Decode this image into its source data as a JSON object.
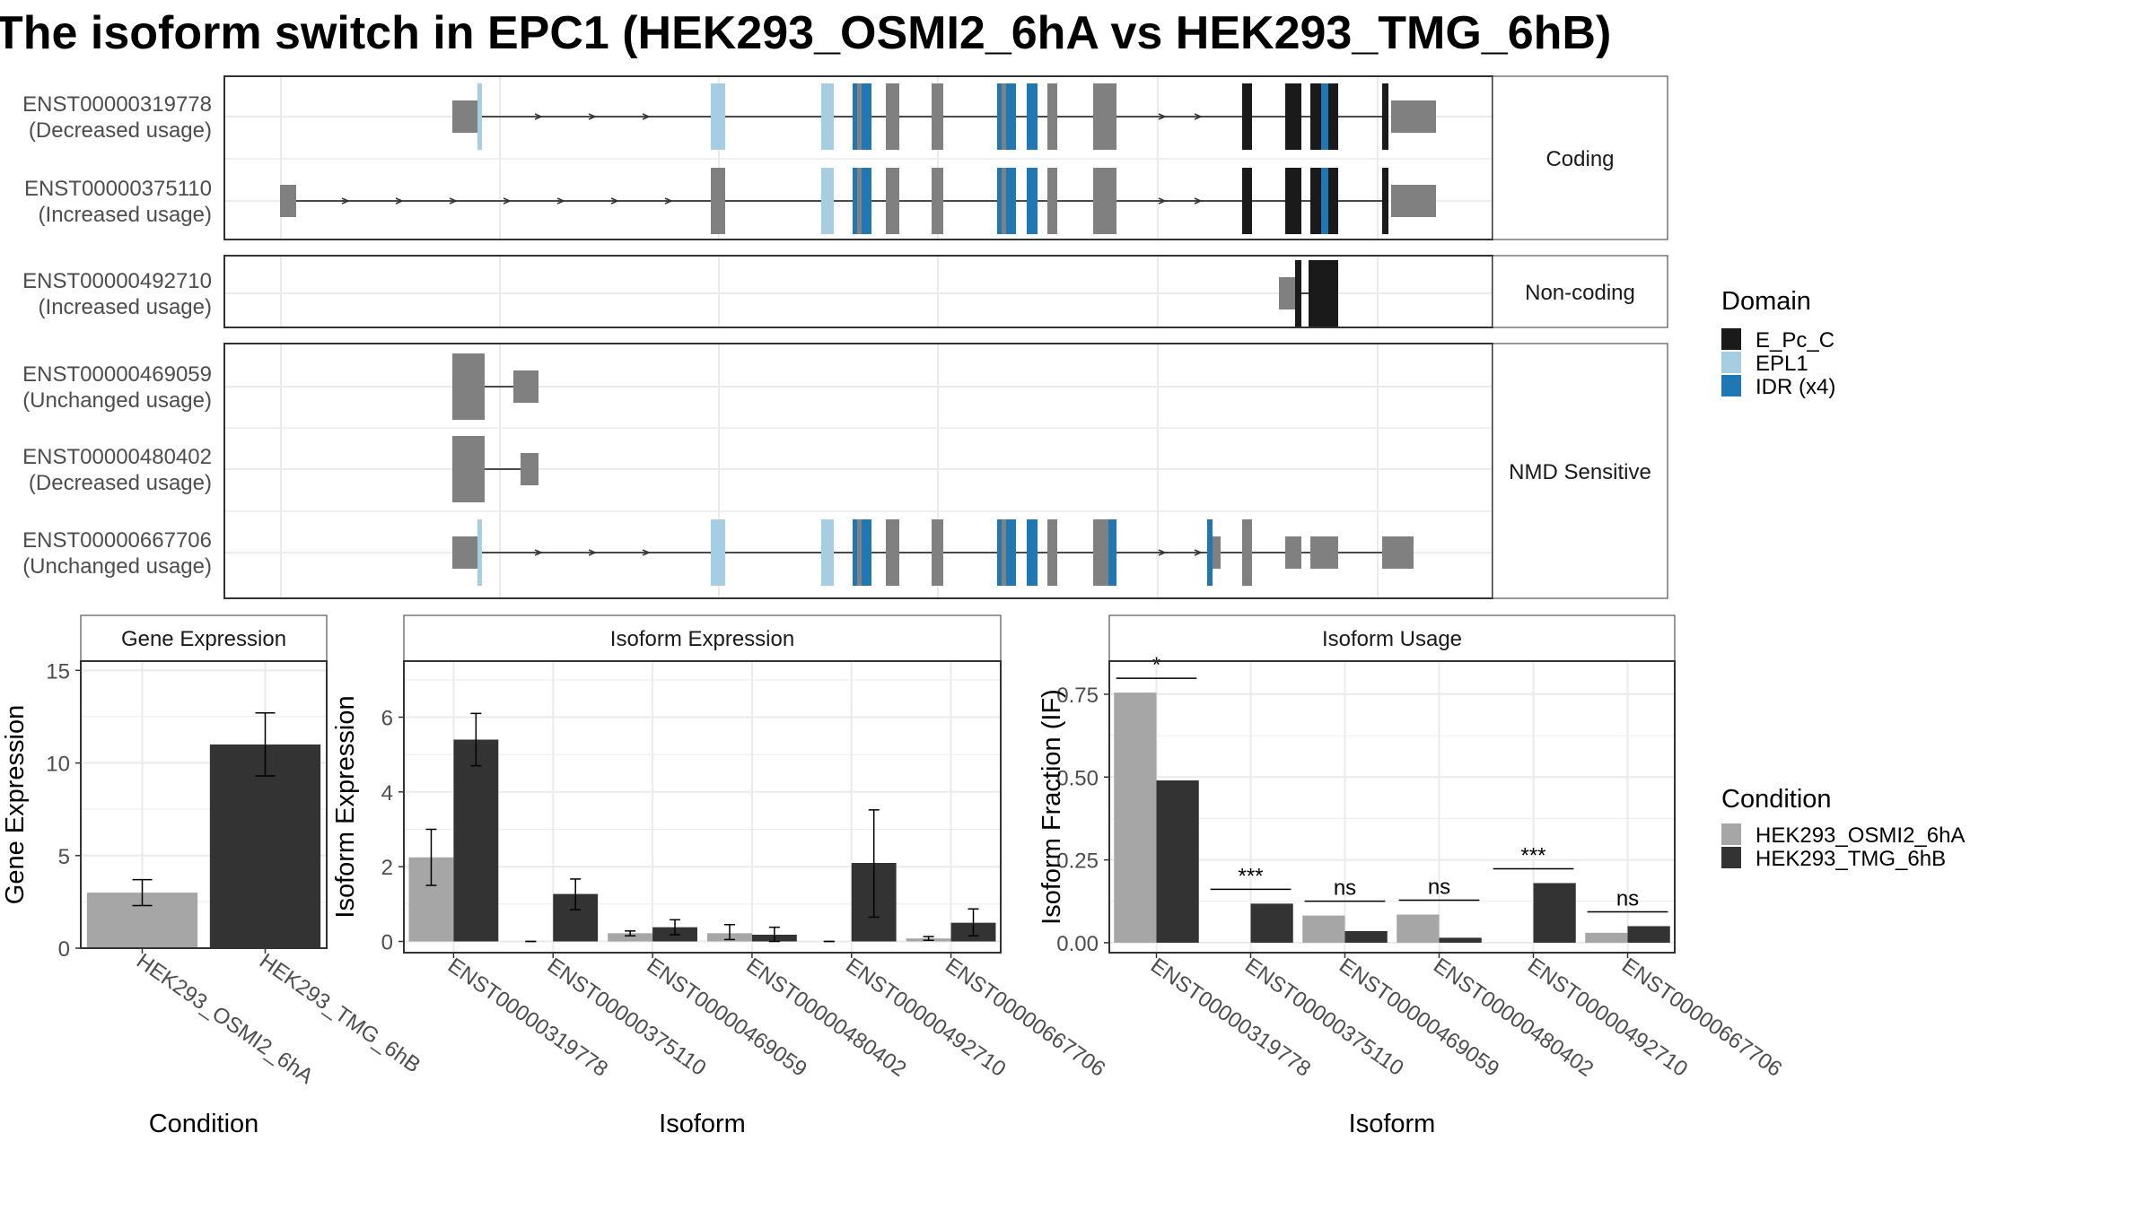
{
  "title": "The isoform switch in EPC1 (HEK293_OSMI2_6hA vs HEK293_TMG_6hB)",
  "colors": {
    "exon": "#808080",
    "E_Pc_C": "#1a1a1a",
    "EPL1": "#a6cee3",
    "IDR": "#1f78b4",
    "cond1": "#a6a6a6",
    "cond2": "#333333"
  },
  "structure": {
    "groups": [
      {
        "label": "Coding",
        "transcripts": [
          {
            "id": "ENST00000319778",
            "usage": "(Decreased usage)"
          },
          {
            "id": "ENST00000375110",
            "usage": "(Increased usage)"
          }
        ]
      },
      {
        "label": "Non-coding",
        "transcripts": [
          {
            "id": "ENST00000492710",
            "usage": "(Increased usage)"
          }
        ]
      },
      {
        "label": "NMD Sensitive",
        "transcripts": [
          {
            "id": "ENST00000469059",
            "usage": "(Unchanged usage)"
          },
          {
            "id": "ENST00000480402",
            "usage": "(Decreased usage)"
          },
          {
            "id": "ENST00000667706",
            "usage": "(Unchanged usage)"
          }
        ]
      }
    ]
  },
  "legends": {
    "domain": {
      "title": "Domain",
      "items": [
        {
          "label": "E_Pc_C",
          "color": "#1a1a1a"
        },
        {
          "label": "EPL1",
          "color": "#a6cee3"
        },
        {
          "label": "IDR (x4)",
          "color": "#1f78b4"
        }
      ]
    },
    "condition": {
      "title": "Condition",
      "items": [
        {
          "label": "HEK293_OSMI2_6hA",
          "color": "#a6a6a6"
        },
        {
          "label": "HEK293_TMG_6hB",
          "color": "#333333"
        }
      ]
    }
  },
  "chart_data": [
    {
      "type": "bar",
      "title": "Gene Expression",
      "xlabel": "Condition",
      "ylabel": "Gene Expression",
      "ylim": [
        0,
        15.5
      ],
      "yticks": [
        0,
        5,
        10,
        15
      ],
      "categories": [
        "HEK293_OSMI2_6hA",
        "HEK293_TMG_6hB"
      ],
      "values": [
        3.0,
        11.0
      ],
      "error": [
        [
          2.3,
          3.7
        ],
        [
          9.3,
          12.7
        ]
      ],
      "grid": true
    },
    {
      "type": "bar",
      "title": "Isoform Expression",
      "xlabel": "Isoform",
      "ylabel": "Isoform Expression",
      "ylim": [
        -0.3,
        7.5
      ],
      "yticks": [
        0,
        2,
        4,
        6
      ],
      "categories": [
        "ENST00000319778",
        "ENST00000375110",
        "ENST00000469059",
        "ENST00000480402",
        "ENST00000492710",
        "ENST00000667706"
      ],
      "series": [
        {
          "name": "HEK293_OSMI2_6hA",
          "values": [
            2.25,
            0.0,
            0.22,
            0.22,
            0.0,
            0.08
          ],
          "error": [
            [
              1.5,
              3.0
            ],
            [
              0,
              0
            ],
            [
              0.15,
              0.28
            ],
            [
              0.05,
              0.45
            ],
            [
              0,
              0
            ],
            [
              0.03,
              0.13
            ]
          ]
        },
        {
          "name": "HEK293_TMG_6hB",
          "values": [
            5.4,
            1.27,
            0.38,
            0.18,
            2.1,
            0.5
          ],
          "error": [
            [
              4.7,
              6.1
            ],
            [
              0.85,
              1.67
            ],
            [
              0.18,
              0.58
            ],
            [
              0.0,
              0.38
            ],
            [
              0.65,
              3.52
            ],
            [
              0.15,
              0.87
            ]
          ]
        }
      ],
      "grid": true
    },
    {
      "type": "bar",
      "title": "Isoform Usage",
      "xlabel": "Isoform",
      "ylabel": "Isoform Fraction (IF)",
      "ylim": [
        -0.03,
        0.85
      ],
      "yticks": [
        0.0,
        0.25,
        0.5,
        0.75
      ],
      "ytick_labels": [
        "0.00",
        "0.25",
        "0.50",
        "0.75"
      ],
      "categories": [
        "ENST00000319778",
        "ENST00000375110",
        "ENST00000469059",
        "ENST00000480402",
        "ENST00000492710",
        "ENST00000667706"
      ],
      "series": [
        {
          "name": "HEK293_OSMI2_6hA",
          "values": [
            0.755,
            0.0,
            0.082,
            0.085,
            0.0,
            0.03
          ]
        },
        {
          "name": "HEK293_TMG_6hB",
          "values": [
            0.49,
            0.118,
            0.035,
            0.015,
            0.18,
            0.05
          ]
        }
      ],
      "significance": [
        "*",
        "***",
        "ns",
        "ns",
        "***",
        "ns"
      ],
      "grid": true
    }
  ]
}
